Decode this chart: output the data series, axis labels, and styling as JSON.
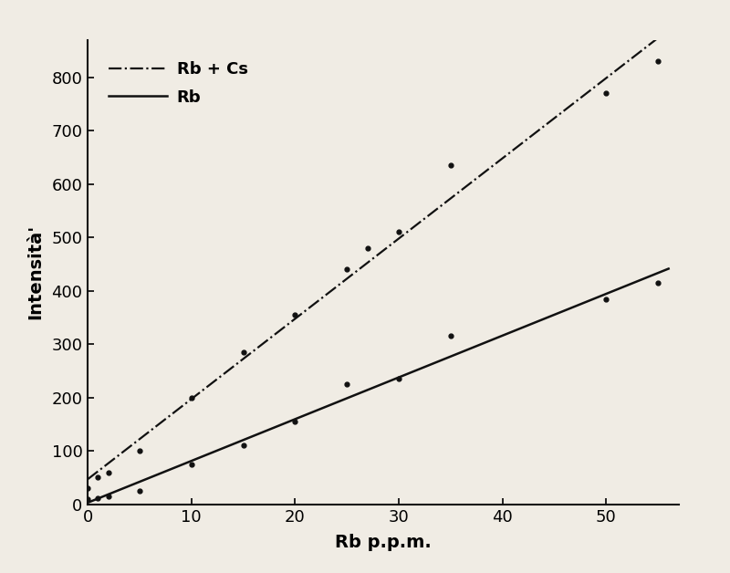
{
  "rb_cs_x": [
    0,
    1,
    2,
    5,
    10,
    15,
    20,
    25,
    27,
    30,
    35,
    50,
    55
  ],
  "rb_cs_y": [
    30,
    50,
    60,
    100,
    200,
    285,
    355,
    440,
    480,
    510,
    635,
    770,
    830
  ],
  "rb_x": [
    0,
    1,
    2,
    5,
    10,
    15,
    20,
    25,
    30,
    35,
    50,
    55
  ],
  "rb_y": [
    10,
    12,
    15,
    25,
    75,
    110,
    155,
    225,
    235,
    315,
    385,
    415
  ],
  "rb_cs_label": "Rb + Cs",
  "rb_label": "Rb",
  "xlabel": "Rb p.p.m.",
  "ylabel": "Intensità'",
  "xlim": [
    0,
    57
  ],
  "ylim": [
    0,
    870
  ],
  "xticks": [
    0,
    10,
    20,
    30,
    40,
    50
  ],
  "yticks": [
    0,
    100,
    200,
    300,
    400,
    500,
    600,
    700,
    800
  ],
  "background_color": "#f0ece4",
  "line_color": "#111111",
  "figsize": [
    8.0,
    6.28
  ],
  "dpi": 100
}
